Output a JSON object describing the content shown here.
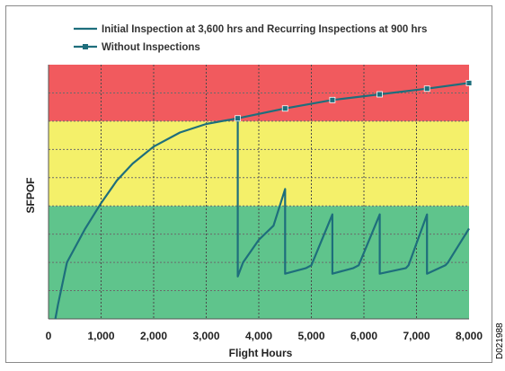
{
  "figure_id": "D021988",
  "chart_data": {
    "type": "line",
    "xlabel": "Flight Hours",
    "ylabel": "SFPOF",
    "xlim": [
      0,
      8000
    ],
    "ylim": [
      0,
      9
    ],
    "x_ticks": [
      0,
      1000,
      2000,
      3000,
      4000,
      5000,
      6000,
      7000,
      8000
    ],
    "x_tick_labels": [
      "0",
      "1,000",
      "2,000",
      "3,000",
      "4,000",
      "5,000",
      "6,000",
      "7,000",
      "8,000"
    ],
    "y_gridlines": [
      1,
      2,
      3,
      4,
      5,
      6,
      7,
      8
    ],
    "vertical_gridlines": true,
    "bands": [
      {
        "from": 0,
        "to": 4,
        "color": "#5fc48c"
      },
      {
        "from": 4,
        "to": 7,
        "color": "#f4f06a"
      },
      {
        "from": 7,
        "to": 9,
        "color": "#f15a5e"
      }
    ],
    "legend_position": "top-left, above plot",
    "series": [
      {
        "name": "Initial Inspection at 3,600 hrs and Recurring Inspections at 900 hrs",
        "color": "#1e6e7c",
        "marker": "none",
        "x": [
          130,
          180,
          350,
          700,
          1000,
          1300,
          1600,
          2000,
          2500,
          3000,
          3600,
          3600,
          3700,
          4000,
          4280,
          4500,
          4500,
          4900,
          5000,
          5400,
          5400,
          5800,
          5900,
          6300,
          6300,
          6800,
          6850,
          7200,
          7200,
          7550,
          7600,
          8000
        ],
        "y": [
          0,
          0.5,
          2,
          3.2,
          4.1,
          4.9,
          5.5,
          6.1,
          6.6,
          6.9,
          7.1,
          1.5,
          2.0,
          2.8,
          3.3,
          4.6,
          1.6,
          1.8,
          1.9,
          3.7,
          1.6,
          1.8,
          1.9,
          3.7,
          1.6,
          1.8,
          1.9,
          3.7,
          1.6,
          1.9,
          2.0,
          3.2
        ]
      },
      {
        "name": "Without Inspections",
        "color": "#1e6e7c",
        "marker": "square",
        "x": [
          3600,
          4500,
          5400,
          6300,
          7200,
          8000
        ],
        "y": [
          7.1,
          7.45,
          7.75,
          7.95,
          8.15,
          8.35
        ]
      }
    ]
  }
}
